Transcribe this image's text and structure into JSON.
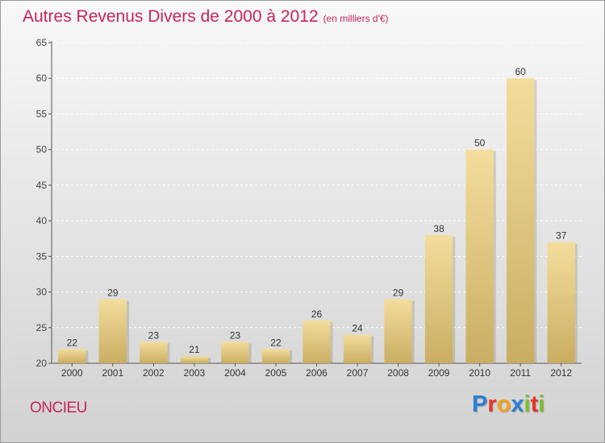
{
  "title": "Autres Revenus Divers de 2000 à 2012",
  "subtitle": "(en milliers d'€)",
  "location": "ONCIEU",
  "logo": {
    "letters": [
      "P",
      "r",
      "o",
      "x",
      "i",
      "t",
      "i"
    ],
    "colors": [
      "#2b7fd4",
      "#e8342a",
      "#f3a21b",
      "#2b7fd4",
      "#7bbf2a",
      "#e8342a",
      "#7bbf2a"
    ]
  },
  "colors": {
    "title": "#c8245a",
    "bar_light": "#f4dd9c",
    "bar_dark": "#c9ad62"
  },
  "chart_data": {
    "type": "bar",
    "categories": [
      "2000",
      "2001",
      "2002",
      "2003",
      "2004",
      "2005",
      "2006",
      "2007",
      "2008",
      "2009",
      "2010",
      "2011",
      "2012"
    ],
    "values": [
      22,
      29,
      23,
      21,
      23,
      22,
      26,
      24,
      29,
      38,
      50,
      60,
      37
    ],
    "ylim": [
      20,
      65
    ],
    "yticks": [
      20,
      25,
      30,
      35,
      40,
      45,
      50,
      55,
      60,
      65
    ],
    "grid": true
  }
}
